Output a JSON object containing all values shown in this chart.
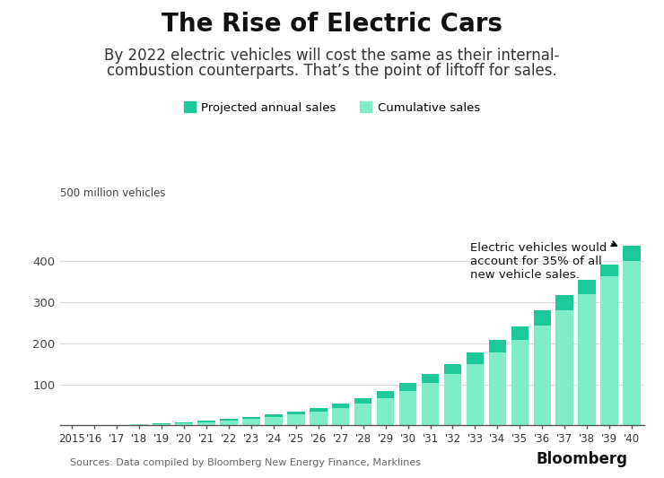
{
  "years": [
    "2015",
    "'16",
    "'17",
    "'18",
    "'19",
    "'20",
    "'21",
    "'22",
    "'23",
    "'24",
    "'25",
    "'26",
    "'27",
    "'28",
    "'29",
    "'30",
    "'31",
    "'32",
    "'33",
    "'34",
    "'35",
    "'36",
    "'37",
    "'38",
    "'39",
    "'40"
  ],
  "cumulative_sales": [
    0.3,
    0.6,
    1.0,
    2.0,
    3.5,
    5.0,
    7.5,
    11.0,
    15.0,
    20.0,
    26.0,
    33.0,
    42.0,
    53.0,
    67.0,
    84.0,
    103.0,
    125.0,
    150.0,
    178.0,
    208.0,
    243.0,
    280.0,
    320.0,
    362.0,
    400.0
  ],
  "annual_sales": [
    0.2,
    0.4,
    0.6,
    0.9,
    1.3,
    2.0,
    3.5,
    4.5,
    5.0,
    6.0,
    7.5,
    9.5,
    12.0,
    14.0,
    17.0,
    20.0,
    22.0,
    25.0,
    28.0,
    30.0,
    33.0,
    36.0,
    38.0,
    35.0,
    30.0,
    38.0
  ],
  "cumulative_color": "#7EEDC8",
  "annual_color": "#1DC99A",
  "title": "The Rise of Electric Cars",
  "subtitle_line1": "By 2022 electric vehicles will cost the same as their internal-",
  "subtitle_line2": "combustion counterparts. That’s the point of liftoff for sales.",
  "ylabel": "500 million vehicles",
  "ylim": [
    0,
    500
  ],
  "yticks": [
    0,
    100,
    200,
    300,
    400
  ],
  "ytick_labels": [
    "",
    "100",
    "200",
    "300",
    "400"
  ],
  "legend_annual": "Projected annual sales",
  "legend_cumulative": "Cumulative sales",
  "annotation_text": "Electric vehicles would\naccount for 35% of all\nnew vehicle sales.",
  "source_text": "Sources: Data compiled by Bloomberg New Energy Finance, Marklines",
  "bg_color": "#FFFFFF",
  "grid_color": "#DDDDDD"
}
